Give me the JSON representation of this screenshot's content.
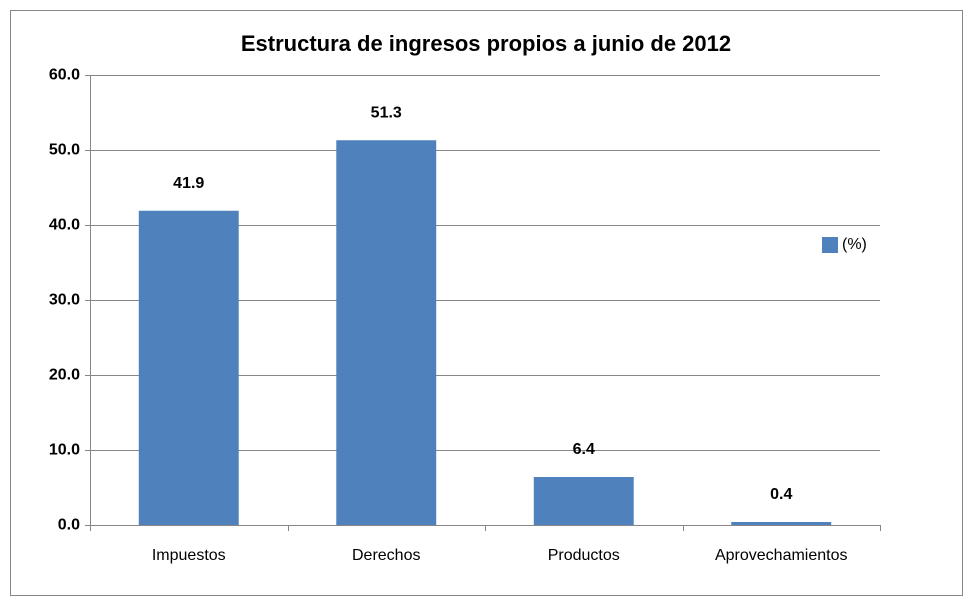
{
  "chart_data": {
    "type": "bar",
    "title": "Estructura de ingresos propios a junio de 2012",
    "categories": [
      "Impuestos",
      "Derechos",
      "Productos",
      "Aprovechamientos"
    ],
    "series": [
      {
        "name": "(%)",
        "color": "#4f81bd",
        "values": [
          41.9,
          51.3,
          6.4,
          0.4
        ]
      }
    ],
    "ylim": [
      0,
      60
    ],
    "yticks": [
      {
        "value": 0,
        "label": "0.0"
      },
      {
        "value": 10,
        "label": "10.0"
      },
      {
        "value": 20,
        "label": "20.0"
      },
      {
        "value": 30,
        "label": "30.0"
      },
      {
        "value": 40,
        "label": "40.0"
      },
      {
        "value": 50,
        "label": "50.0"
      },
      {
        "value": 60,
        "label": "60.0"
      }
    ],
    "grid": true,
    "legend": "right"
  }
}
